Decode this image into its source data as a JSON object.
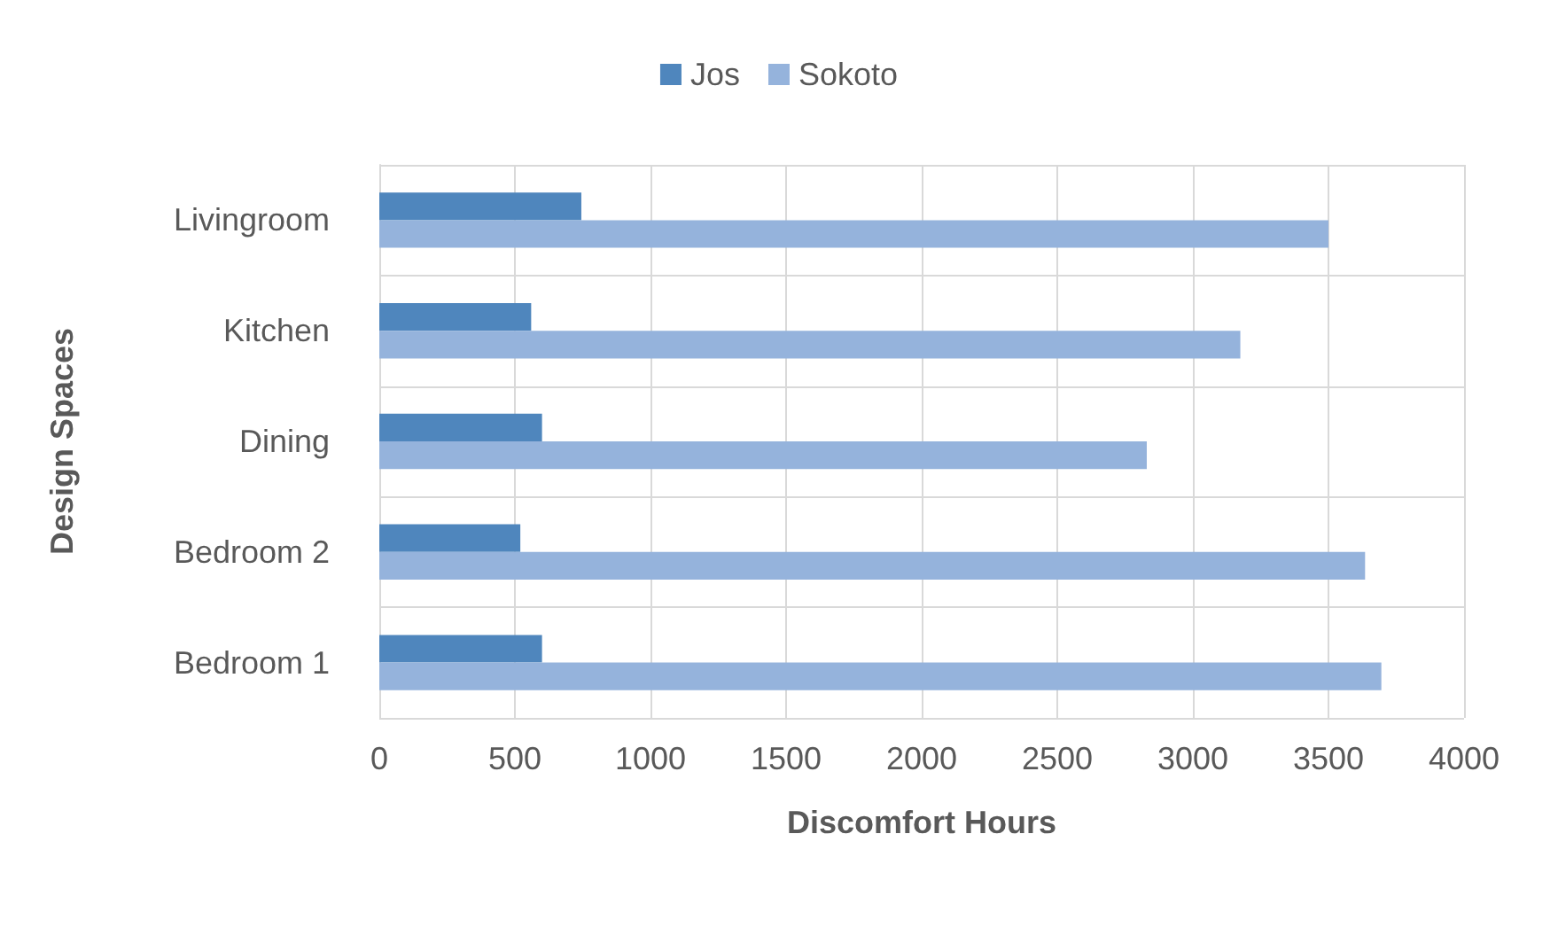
{
  "chart_data": {
    "type": "bar",
    "orientation": "horizontal",
    "xlabel": "Discomfort Hours",
    "ylabel": "Design Spaces",
    "categories": [
      "Livingroom",
      "Kitchen",
      "Dining",
      "Bedroom 2",
      "Bedroom 1"
    ],
    "series": [
      {
        "name": "Jos",
        "color": "#4f86bd",
        "values": [
          745,
          560,
          600,
          520,
          600
        ]
      },
      {
        "name": "Sokoto",
        "color": "#95b3dc",
        "values": [
          3500,
          3175,
          2830,
          3635,
          3695
        ]
      }
    ],
    "xlim": [
      0,
      4000
    ],
    "xticks": [
      0,
      500,
      1000,
      1500,
      2000,
      2500,
      3000,
      3500,
      4000
    ],
    "grid": true,
    "legend": "top"
  }
}
